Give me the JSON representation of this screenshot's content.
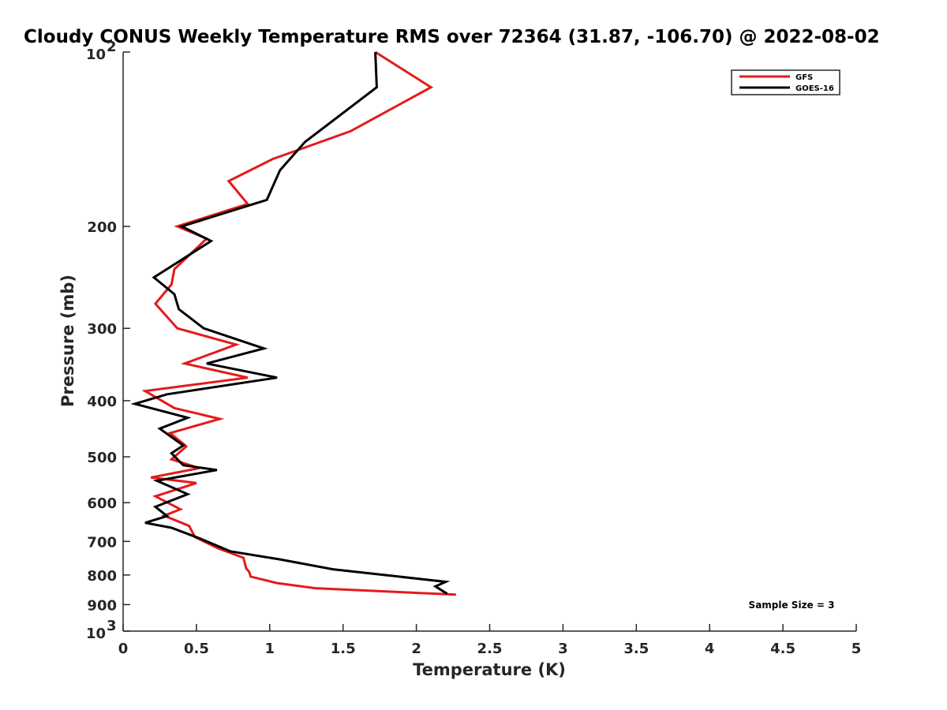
{
  "chart_data": {
    "type": "line",
    "title": "Cloudy CONUS Weekly Temperature RMS over 72364 (31.87, -106.70) @ 2022-08-02",
    "xlabel": "Temperature (K)",
    "ylabel": "Pressure (mb)",
    "xlim": [
      0,
      5
    ],
    "ylim": [
      100,
      1000
    ],
    "yscale": "log",
    "yreversed": true,
    "grid": false,
    "legend_position": "top-right",
    "x_ticks": [
      "0",
      "0.5",
      "1",
      "1.5",
      "2",
      "2.5",
      "3",
      "3.5",
      "4",
      "4.5",
      "5"
    ],
    "y_ticks": [
      {
        "value": 100,
        "label": "10",
        "sup": "2"
      },
      {
        "value": 200,
        "label": "200",
        "sup": ""
      },
      {
        "value": 300,
        "label": "300",
        "sup": ""
      },
      {
        "value": 400,
        "label": "400",
        "sup": ""
      },
      {
        "value": 500,
        "label": "500",
        "sup": ""
      },
      {
        "value": 600,
        "label": "600",
        "sup": ""
      },
      {
        "value": 700,
        "label": "700",
        "sup": ""
      },
      {
        "value": 800,
        "label": "800",
        "sup": ""
      },
      {
        "value": 900,
        "label": "900",
        "sup": ""
      },
      {
        "value": 1000,
        "label": "10",
        "sup": "3"
      }
    ],
    "series": [
      {
        "name": "GFS",
        "color": "#e41a1c",
        "points": [
          [
            1.72,
            100
          ],
          [
            2.1,
            115
          ],
          [
            1.55,
            137
          ],
          [
            1.02,
            153
          ],
          [
            0.72,
            167
          ],
          [
            0.85,
            183
          ],
          [
            0.37,
            200
          ],
          [
            0.57,
            210
          ],
          [
            0.35,
            237
          ],
          [
            0.33,
            252
          ],
          [
            0.22,
            272
          ],
          [
            0.37,
            300
          ],
          [
            0.77,
            320
          ],
          [
            0.42,
            345
          ],
          [
            0.85,
            365
          ],
          [
            0.15,
            385
          ],
          [
            0.35,
            412
          ],
          [
            0.66,
            430
          ],
          [
            0.32,
            455
          ],
          [
            0.42,
            477
          ],
          [
            0.43,
            480
          ],
          [
            0.33,
            505
          ],
          [
            0.52,
            523
          ],
          [
            0.19,
            543
          ],
          [
            0.5,
            555
          ],
          [
            0.22,
            585
          ],
          [
            0.39,
            616
          ],
          [
            0.28,
            632
          ],
          [
            0.45,
            658
          ],
          [
            0.49,
            688
          ],
          [
            0.65,
            720
          ],
          [
            0.82,
            747
          ],
          [
            0.84,
            780
          ],
          [
            0.86,
            790
          ],
          [
            0.87,
            805
          ],
          [
            1.05,
            826
          ],
          [
            1.31,
            843
          ],
          [
            2.27,
            865
          ]
        ]
      },
      {
        "name": "GOES-16",
        "color": "#000000",
        "points": [
          [
            1.72,
            100
          ],
          [
            1.73,
            115
          ],
          [
            1.24,
            143
          ],
          [
            1.07,
            160
          ],
          [
            0.98,
            180
          ],
          [
            0.4,
            200
          ],
          [
            0.6,
            212
          ],
          [
            0.21,
            245
          ],
          [
            0.35,
            262
          ],
          [
            0.38,
            278
          ],
          [
            0.55,
            300
          ],
          [
            0.96,
            325
          ],
          [
            0.57,
            345
          ],
          [
            1.05,
            365
          ],
          [
            0.3,
            390
          ],
          [
            0.08,
            405
          ],
          [
            0.44,
            428
          ],
          [
            0.25,
            447
          ],
          [
            0.41,
            478
          ],
          [
            0.33,
            493
          ],
          [
            0.41,
            517
          ],
          [
            0.64,
            527
          ],
          [
            0.23,
            550
          ],
          [
            0.44,
            580
          ],
          [
            0.22,
            610
          ],
          [
            0.3,
            633
          ],
          [
            0.15,
            650
          ],
          [
            0.33,
            663
          ],
          [
            0.53,
            693
          ],
          [
            0.73,
            728
          ],
          [
            1.07,
            752
          ],
          [
            1.43,
            782
          ],
          [
            2.2,
            822
          ],
          [
            2.13,
            837
          ],
          [
            2.21,
            862
          ]
        ]
      }
    ],
    "annotation": "Sample Size = 3"
  }
}
